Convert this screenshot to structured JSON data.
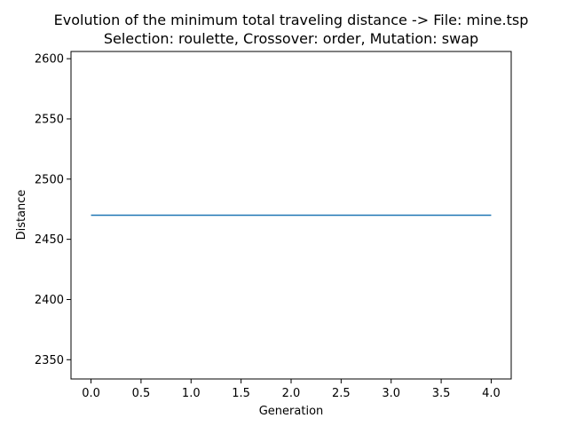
{
  "chart_data": {
    "type": "line",
    "title_lines": [
      "Evolution of the minimum total traveling distance -> File: mine.tsp",
      "Selection: roulette, Crossover: order, Mutation: swap"
    ],
    "xlabel": "Generation",
    "ylabel": "Distance",
    "xlim": [
      -0.2,
      4.2
    ],
    "ylim": [
      2334,
      2606
    ],
    "xticks": [
      0.0,
      0.5,
      1.0,
      1.5,
      2.0,
      2.5,
      3.0,
      3.5,
      4.0
    ],
    "xtick_labels": [
      "0.0",
      "0.5",
      "1.0",
      "1.5",
      "2.0",
      "2.5",
      "3.0",
      "3.5",
      "4.0"
    ],
    "yticks": [
      2350,
      2400,
      2450,
      2500,
      2550,
      2600
    ],
    "ytick_labels": [
      "2350",
      "2400",
      "2450",
      "2500",
      "2550",
      "2600"
    ],
    "grid": false,
    "legend": "none",
    "series": [
      {
        "color": "#1f77b4",
        "x": [
          0,
          1,
          2,
          3,
          4
        ],
        "y": [
          2470,
          2470,
          2470,
          2470,
          2470
        ]
      }
    ]
  }
}
